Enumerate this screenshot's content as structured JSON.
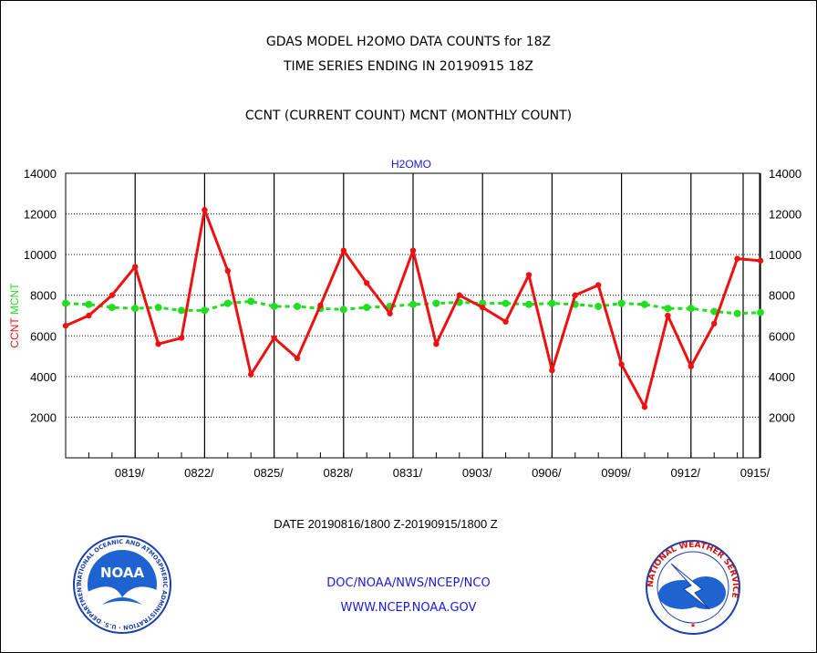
{
  "header": {
    "title_line1": "GDAS MODEL H2OMO DATA COUNTS for 18Z",
    "title_line2": "TIME SERIES ENDING IN 20190915 18Z",
    "subtitle": "CCNT (CURRENT COUNT) MCNT (MONTHLY COUNT)"
  },
  "footer": {
    "credit": "DOC/NOAA/NWS/NCEP/NCO",
    "url": "WWW.NCEP.NOAA.GOV"
  },
  "logos": {
    "noaa_text": "NOAA",
    "noaa_ring": "NATIONAL OCEANIC AND ATMOSPHERIC ADMINISTRATION · U.S. DEPARTMENT OF COMMERCE",
    "nws_ring": "NATIONAL WEATHER SERVICE"
  },
  "colors": {
    "ccnt": "#ee1111",
    "mcnt": "#22dd22",
    "panel_title": "#1a1adb",
    "date_range": "#ee1111",
    "grid": "#000000"
  },
  "chart_data": {
    "type": "line",
    "title": "H2OMO",
    "xlabel": "DATE 20190816/1800 Z-20190915/1800 Z",
    "ylabel_parts": [
      {
        "text": "CCNT",
        "color": "#ee1111"
      },
      {
        "text": "MCNT",
        "color": "#22dd22"
      }
    ],
    "ylim": [
      0,
      14000
    ],
    "yticks": [
      2000,
      4000,
      6000,
      8000,
      10000,
      12000,
      14000
    ],
    "x": [
      "0816",
      "0817",
      "0818",
      "0819",
      "0820",
      "0821",
      "0822",
      "0823",
      "0824",
      "0825",
      "0826",
      "0827",
      "0828",
      "0829",
      "0830",
      "0831",
      "0901",
      "0902",
      "0903",
      "0904",
      "0905",
      "0906",
      "0907",
      "0908",
      "0909",
      "0910",
      "0911",
      "0912",
      "0913",
      "0914",
      "0915"
    ],
    "xtick_labels": [
      "0819/",
      "0822/",
      "0825/",
      "0828/",
      "0831/",
      "0903/",
      "0906/",
      "0909/",
      "0912/",
      "0915/"
    ],
    "xtick_positions": [
      "0819",
      "0822",
      "0825",
      "0828",
      "0831",
      "0903",
      "0906",
      "0909",
      "0912",
      "0915"
    ],
    "grid": true,
    "series": [
      {
        "name": "CCNT",
        "color": "#ee1111",
        "values": [
          6500,
          7000,
          8000,
          9400,
          5600,
          5900,
          12200,
          9200,
          4100,
          5900,
          4900,
          7500,
          10200,
          8600,
          7100,
          10200,
          5600,
          8000,
          7400,
          6700,
          9000,
          4300,
          8000,
          8500,
          4600,
          2500,
          7000,
          4500,
          6600,
          9800,
          9700
        ]
      },
      {
        "name": "MCNT",
        "color": "#22dd22",
        "values": [
          7600,
          7550,
          7400,
          7350,
          7400,
          7250,
          7250,
          7600,
          7700,
          7450,
          7450,
          7350,
          7300,
          7400,
          7450,
          7550,
          7600,
          7650,
          7600,
          7600,
          7550,
          7600,
          7550,
          7450,
          7600,
          7550,
          7350,
          7350,
          7200,
          7100,
          7150
        ]
      }
    ]
  }
}
